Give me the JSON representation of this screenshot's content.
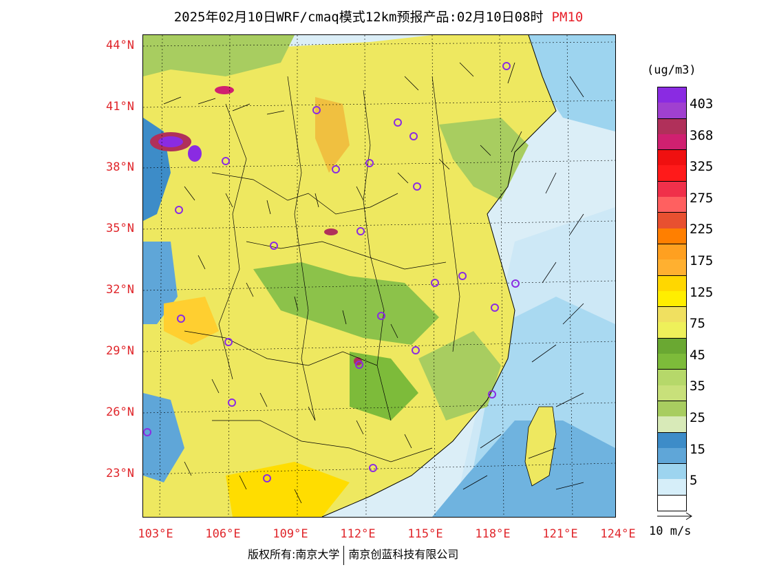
{
  "title": {
    "main": "2025年02月10日WRF/cmaq模式12km预报产品:02月10日08时",
    "pollutant": "PM10"
  },
  "map": {
    "lat_labels": [
      "44°N",
      "41°N",
      "38°N",
      "35°N",
      "32°N",
      "29°N",
      "26°N",
      "23°N"
    ],
    "lon_labels": [
      "103°E",
      "106°E",
      "109°E",
      "112°E",
      "115°E",
      "118°E",
      "121°E",
      "124°E"
    ]
  },
  "legend": {
    "unit": "(ug/m3)",
    "labels": [
      "403",
      "368",
      "325",
      "275",
      "225",
      "175",
      "125",
      "75",
      "45",
      "35",
      "25",
      "15",
      "5"
    ],
    "colors": [
      [
        "#8a2be2",
        "#a040d0"
      ],
      [
        "#b0305a",
        "#d02070"
      ],
      [
        "#f01010",
        "#ff1a1a"
      ],
      [
        "#f0304a",
        "#ff6060"
      ],
      [
        "#e85030",
        "#ff7f00"
      ],
      [
        "#ffa020",
        "#ffb030"
      ],
      [
        "#ffd700",
        "#ffee00"
      ],
      [
        "#f0e060",
        "#eef05a"
      ],
      [
        "#6aa832",
        "#7dbb3a"
      ],
      [
        "#b6d86a",
        "#c8e07a"
      ],
      [
        "#a8cd60",
        "#d8eab8"
      ],
      [
        "#3d8cc8",
        "#5fa6d8"
      ],
      [
        "#9dd4ef",
        "#d6eef9"
      ]
    ]
  },
  "wind_reference": "10 m/s",
  "copyright": {
    "left": "版权所有:南京大学",
    "right": "南京创蓝科技有限公司"
  }
}
